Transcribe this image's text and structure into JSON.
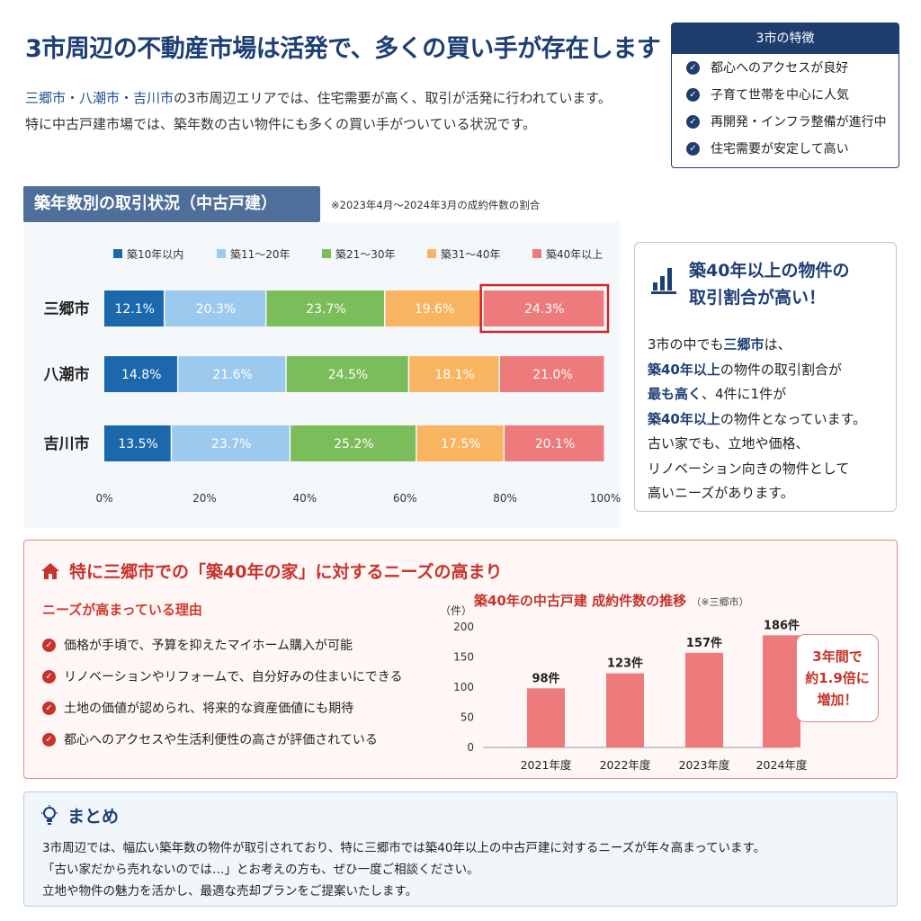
{
  "header": {
    "title": "3市周辺の不動産市場は活発で、多くの買い手が存在します",
    "intro_cities": "三郷市・八潮市・吉川市",
    "intro_line1_rest": "の3市周辺エリアでは、住宅需要が高く、取引が活発に行われています。",
    "intro_line2": "特に中古戸建市場では、築年数の古い物件にも多くの買い手がついている状況です。"
  },
  "features": {
    "title": "3市の特徴",
    "items": [
      "都心へのアクセスが良好",
      "子育て世帯を中心に人気",
      "再開発・インフラ整備が進行中",
      "住宅需要が安定して高い"
    ]
  },
  "section": {
    "title": "築年数別の取引状況（中古戸建）",
    "note": "※2023年4月〜2024年3月の成約件数の割合"
  },
  "colors": {
    "navy": "#1d3f74",
    "red": "#c7332b",
    "series": [
      "#1b68ad",
      "#9ccaee",
      "#7bbd5a",
      "#f8b461",
      "#ee7b7b"
    ],
    "highlight": "#c9252b",
    "bar": "#ee7b7b"
  },
  "chart_data": [
    {
      "type": "bar",
      "orientation": "horizontal",
      "stacked": true,
      "categories": [
        "三郷市",
        "八潮市",
        "吉川市"
      ],
      "series": [
        {
          "name": "築10年以内",
          "values": [
            12.1,
            14.8,
            13.5
          ]
        },
        {
          "name": "築11〜20年",
          "values": [
            20.3,
            21.6,
            23.7
          ]
        },
        {
          "name": "築21〜30年",
          "values": [
            23.7,
            24.5,
            25.2
          ]
        },
        {
          "name": "築31〜40年",
          "values": [
            19.6,
            18.1,
            17.5
          ]
        },
        {
          "name": "築40年以上",
          "values": [
            24.3,
            21.0,
            20.1
          ]
        }
      ],
      "x_ticks": [
        "0%",
        "20%",
        "40%",
        "60%",
        "80%",
        "100%"
      ],
      "xlim": [
        0,
        100
      ],
      "legend": "top",
      "highlight": {
        "category": "三郷市",
        "series": "築40年以上"
      }
    },
    {
      "type": "bar",
      "title": "築40年の中古戸建 成約件数の推移",
      "subtitle": "（※三郷市）",
      "ylabel": "（件）",
      "categories": [
        "2021年度",
        "2022年度",
        "2023年度",
        "2024年度"
      ],
      "values": [
        98,
        123,
        157,
        186
      ],
      "value_labels": [
        "98件",
        "123件",
        "157件",
        "186件"
      ],
      "y_ticks": [
        0,
        50,
        100,
        150,
        200
      ],
      "ylim": [
        0,
        200
      ],
      "grid": false
    }
  ],
  "callout": {
    "title_line1": "築40年以上の物件の",
    "title_line2": "取引割合が高い！",
    "l1_pre": "3市の中でも",
    "l1_hl": "三郷市",
    "l1_post": "は、",
    "l2_hl": "築40年以上",
    "l2_post": "の物件の取引割合が",
    "l3_hl": "最も高く",
    "l3_post": "、4件に1件が",
    "l4_hl": "築40年以上",
    "l4_post": "の物件となっています。",
    "l5": "古い家でも、立地や価格、",
    "l6": "リノベーション向きの物件として",
    "l7": "高いニーズがあります。"
  },
  "needs": {
    "title": "特に三郷市での「築40年の家」に対するニーズの高まり",
    "reasons_heading": "ニーズが高まっている理由",
    "reasons": [
      "価格が手頃で、予算を抑えたマイホーム購入が可能",
      "リノベーションやリフォームで、自分好みの住まいにできる",
      "土地の価値が認められ、将来的な資産価値にも期待",
      "都心へのアクセスや生活利便性の高さが評価されている"
    ],
    "badge_line1": "3年間で",
    "badge_line2": "約1.9倍に",
    "badge_line3": "増加！"
  },
  "summary": {
    "title": "まとめ",
    "lines": [
      "3市周辺では、幅広い築年数の物件が取引されており、特に三郷市では築40年以上の中古戸建に対するニーズが年々高まっています。",
      "「古い家だから売れないのでは…」とお考えの方も、ぜひ一度ご相談ください。",
      "立地や物件の魅力を活かし、最適な売却プランをご提案いたします。"
    ]
  }
}
